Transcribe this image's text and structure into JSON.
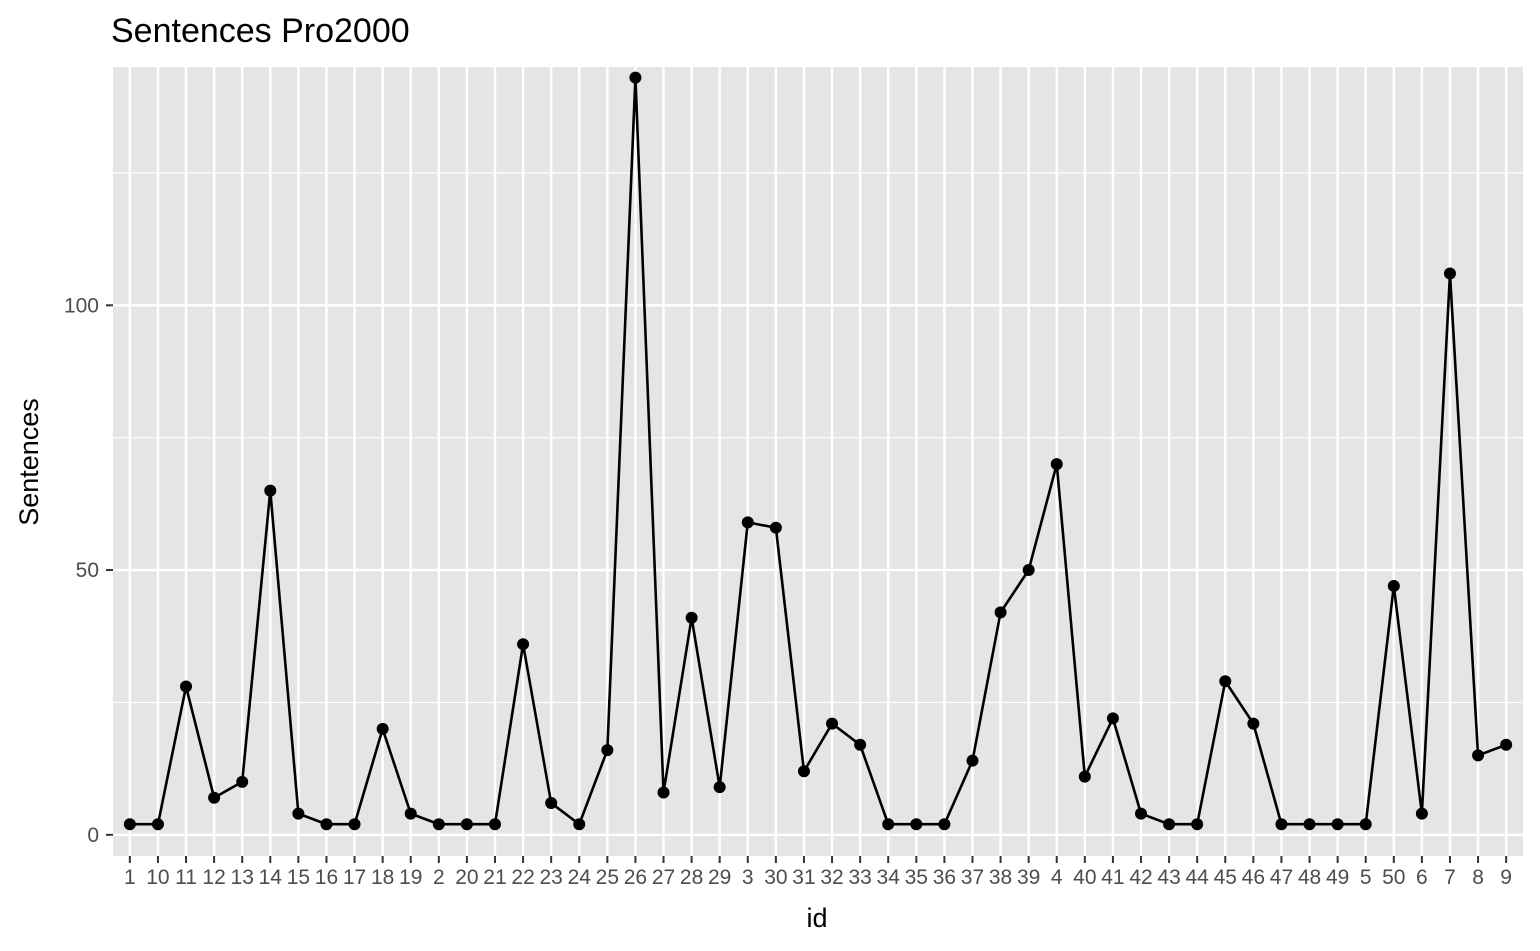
{
  "chart_data": {
    "type": "line",
    "title": "Sentences Pro2000",
    "xlabel": "id",
    "ylabel": "Sentences",
    "ylim": [
      -4,
      145
    ],
    "yticks": [
      0,
      50,
      100
    ],
    "grid": true,
    "legend": "none",
    "colors": {
      "panel": "#e5e5e5",
      "grid": "#ffffff",
      "line": "#000000",
      "tick_text": "#4d4d4d"
    },
    "x": [
      "1",
      "10",
      "11",
      "12",
      "13",
      "14",
      "15",
      "16",
      "17",
      "18",
      "19",
      "2",
      "20",
      "21",
      "22",
      "23",
      "24",
      "25",
      "26",
      "27",
      "28",
      "29",
      "3",
      "30",
      "31",
      "32",
      "33",
      "34",
      "35",
      "36",
      "37",
      "38",
      "39",
      "4",
      "40",
      "41",
      "42",
      "43",
      "44",
      "45",
      "46",
      "47",
      "48",
      "49",
      "5",
      "50",
      "6",
      "7",
      "8",
      "9"
    ],
    "series": [
      {
        "values": [
          2,
          2,
          28,
          7,
          10,
          65,
          4,
          2,
          2,
          20,
          4,
          2,
          2,
          2,
          36,
          6,
          2,
          16,
          143,
          8,
          41,
          9,
          59,
          58,
          12,
          21,
          17,
          2,
          2,
          2,
          14,
          42,
          50,
          70,
          11,
          22,
          4,
          2,
          2,
          29,
          21,
          2,
          2,
          2,
          2,
          47,
          4,
          106,
          15,
          17
        ]
      }
    ]
  }
}
